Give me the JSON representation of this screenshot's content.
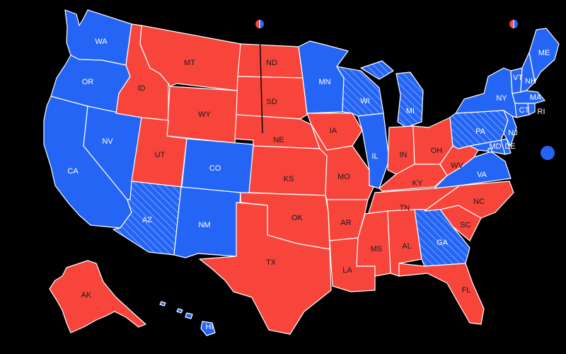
{
  "colors": {
    "dem": "#2565f5",
    "rep": "#f8453c",
    "dem_hatch_line": "#9bbcff",
    "background": "#000000",
    "border": "#ffffff"
  },
  "legend": {
    "split_marker_icons": [
      "split-district-marker-icon",
      "split-district-marker-icon"
    ]
  },
  "states": [
    {
      "abbr": "WA",
      "party": "dem",
      "hatched": false
    },
    {
      "abbr": "OR",
      "party": "dem",
      "hatched": false
    },
    {
      "abbr": "CA",
      "party": "dem",
      "hatched": false
    },
    {
      "abbr": "NV",
      "party": "dem",
      "hatched": false
    },
    {
      "abbr": "ID",
      "party": "rep",
      "hatched": false
    },
    {
      "abbr": "MT",
      "party": "rep",
      "hatched": false
    },
    {
      "abbr": "WY",
      "party": "rep",
      "hatched": false
    },
    {
      "abbr": "UT",
      "party": "rep",
      "hatched": false
    },
    {
      "abbr": "CO",
      "party": "dem",
      "hatched": false
    },
    {
      "abbr": "AZ",
      "party": "dem",
      "hatched": true
    },
    {
      "abbr": "NM",
      "party": "dem",
      "hatched": false
    },
    {
      "abbr": "ND",
      "party": "rep",
      "hatched": false
    },
    {
      "abbr": "SD",
      "party": "rep",
      "hatched": false
    },
    {
      "abbr": "NE",
      "party": "rep",
      "hatched": false
    },
    {
      "abbr": "KS",
      "party": "rep",
      "hatched": false
    },
    {
      "abbr": "OK",
      "party": "rep",
      "hatched": false
    },
    {
      "abbr": "TX",
      "party": "rep",
      "hatched": false
    },
    {
      "abbr": "MN",
      "party": "dem",
      "hatched": false
    },
    {
      "abbr": "IA",
      "party": "rep",
      "hatched": false
    },
    {
      "abbr": "MO",
      "party": "rep",
      "hatched": false
    },
    {
      "abbr": "AR",
      "party": "rep",
      "hatched": false
    },
    {
      "abbr": "LA",
      "party": "rep",
      "hatched": false
    },
    {
      "abbr": "WI",
      "party": "dem",
      "hatched": true
    },
    {
      "abbr": "IL",
      "party": "dem",
      "hatched": false
    },
    {
      "abbr": "MI",
      "party": "dem",
      "hatched": true
    },
    {
      "abbr": "IN",
      "party": "rep",
      "hatched": false
    },
    {
      "abbr": "OH",
      "party": "rep",
      "hatched": false
    },
    {
      "abbr": "KY",
      "party": "rep",
      "hatched": false
    },
    {
      "abbr": "TN",
      "party": "rep",
      "hatched": false
    },
    {
      "abbr": "MS",
      "party": "rep",
      "hatched": false
    },
    {
      "abbr": "AL",
      "party": "rep",
      "hatched": false
    },
    {
      "abbr": "GA",
      "party": "dem",
      "hatched": true
    },
    {
      "abbr": "FL",
      "party": "rep",
      "hatched": false
    },
    {
      "abbr": "SC",
      "party": "rep",
      "hatched": false
    },
    {
      "abbr": "NC",
      "party": "rep",
      "hatched": false
    },
    {
      "abbr": "VA",
      "party": "dem",
      "hatched": false
    },
    {
      "abbr": "WV",
      "party": "rep",
      "hatched": false
    },
    {
      "abbr": "PA",
      "party": "dem",
      "hatched": true
    },
    {
      "abbr": "NY",
      "party": "dem",
      "hatched": false
    },
    {
      "abbr": "VT",
      "party": "dem",
      "hatched": false
    },
    {
      "abbr": "NH",
      "party": "dem",
      "hatched": false
    },
    {
      "abbr": "ME",
      "party": "dem",
      "hatched": false
    },
    {
      "abbr": "MA",
      "party": "dem",
      "hatched": false
    },
    {
      "abbr": "CT",
      "party": "dem",
      "hatched": false
    },
    {
      "abbr": "RI",
      "party": "dem",
      "hatched": false
    },
    {
      "abbr": "NJ",
      "party": "dem",
      "hatched": false
    },
    {
      "abbr": "DE",
      "party": "dem",
      "hatched": false
    },
    {
      "abbr": "MD",
      "party": "dem",
      "hatched": false
    },
    {
      "abbr": "DC",
      "party": "dem",
      "hatched": false
    },
    {
      "abbr": "AK",
      "party": "rep",
      "hatched": false
    },
    {
      "abbr": "HI",
      "party": "dem",
      "hatched": false
    }
  ]
}
